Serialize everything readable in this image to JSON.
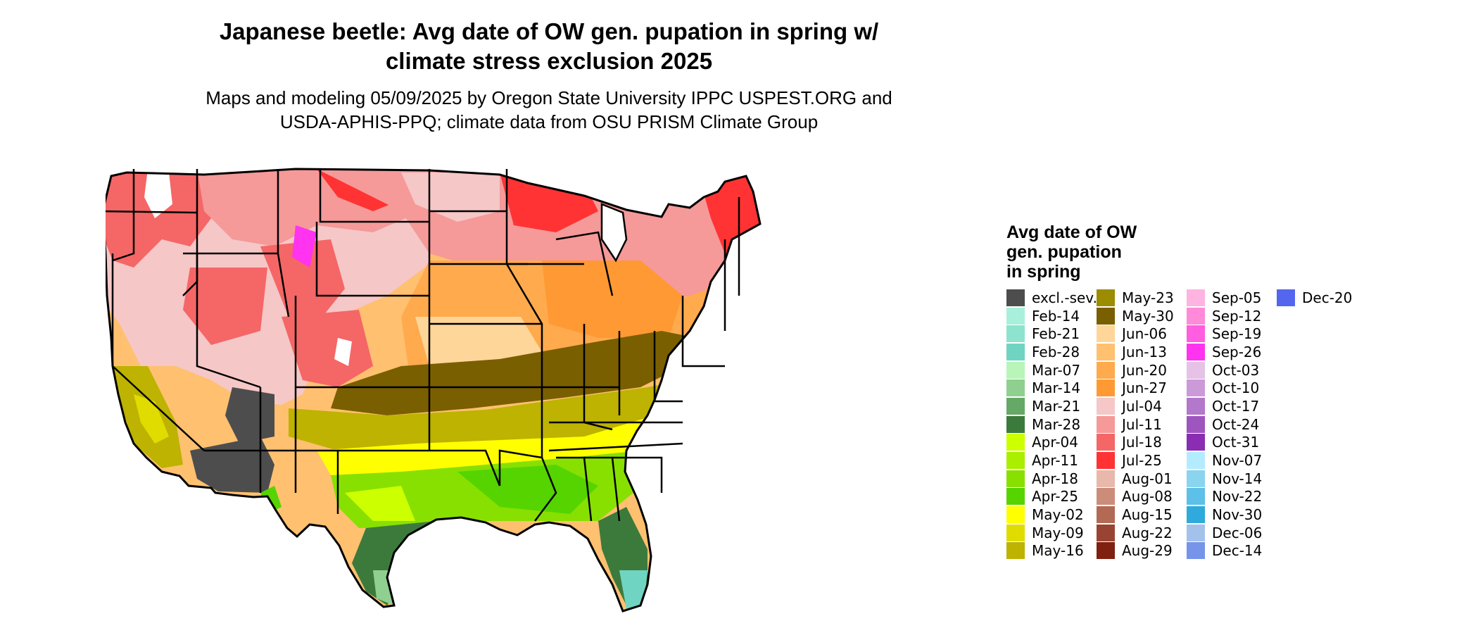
{
  "header": {
    "title_line1": "Japanese beetle: Avg date of OW gen. pupation in spring w/",
    "title_line2": "climate stress exclusion 2025",
    "subtitle_line1": "Maps and modeling 05/09/2025 by Oregon State University IPPC USPEST.ORG and",
    "subtitle_line2": "USDA-APHIS-PPQ; climate data from OSU PRISM Climate Group"
  },
  "legend": {
    "title_line1": "Avg date of OW",
    "title_line2": "gen. pupation",
    "title_line3": "in spring",
    "items": [
      {
        "label": "excl.-sev.",
        "color": "#4d4d4d"
      },
      {
        "label": "Feb-14",
        "color": "#a8f0dc"
      },
      {
        "label": "Feb-21",
        "color": "#8de3cd"
      },
      {
        "label": "Feb-28",
        "color": "#6fd4c2"
      },
      {
        "label": "Mar-07",
        "color": "#b9f5b9"
      },
      {
        "label": "Mar-14",
        "color": "#8fcf8f"
      },
      {
        "label": "Mar-21",
        "color": "#66a866"
      },
      {
        "label": "Mar-28",
        "color": "#3c7a3c"
      },
      {
        "label": "Apr-04",
        "color": "#ccff00"
      },
      {
        "label": "Apr-11",
        "color": "#aaee00"
      },
      {
        "label": "Apr-18",
        "color": "#88e000"
      },
      {
        "label": "Apr-25",
        "color": "#55d400"
      },
      {
        "label": "May-02",
        "color": "#ffff00"
      },
      {
        "label": "May-09",
        "color": "#e0dc00"
      },
      {
        "label": "May-16",
        "color": "#bdb300"
      },
      {
        "label": "May-23",
        "color": "#9c8c00"
      },
      {
        "label": "May-30",
        "color": "#7a5f00"
      },
      {
        "label": "Jun-06",
        "color": "#ffd699"
      },
      {
        "label": "Jun-13",
        "color": "#ffc070"
      },
      {
        "label": "Jun-20",
        "color": "#ffaa4d"
      },
      {
        "label": "Jun-27",
        "color": "#ff9933"
      },
      {
        "label": "Jul-04",
        "color": "#f5c7c7"
      },
      {
        "label": "Jul-11",
        "color": "#f59999"
      },
      {
        "label": "Jul-18",
        "color": "#f56666"
      },
      {
        "label": "Jul-25",
        "color": "#ff3333"
      },
      {
        "label": "Aug-01",
        "color": "#e8b8ab"
      },
      {
        "label": "Aug-08",
        "color": "#cc8c7a"
      },
      {
        "label": "Aug-15",
        "color": "#b36a55"
      },
      {
        "label": "Aug-22",
        "color": "#994433"
      },
      {
        "label": "Aug-29",
        "color": "#802010"
      },
      {
        "label": "Sep-05",
        "color": "#ffb3e0"
      },
      {
        "label": "Sep-12",
        "color": "#ff8ad9"
      },
      {
        "label": "Sep-19",
        "color": "#ff5ee0"
      },
      {
        "label": "Sep-26",
        "color": "#ff33f0"
      },
      {
        "label": "Oct-03",
        "color": "#e6c2e6"
      },
      {
        "label": "Oct-10",
        "color": "#cc99d9"
      },
      {
        "label": "Oct-17",
        "color": "#b377cc"
      },
      {
        "label": "Oct-24",
        "color": "#9e55bf"
      },
      {
        "label": "Oct-31",
        "color": "#8a2db3"
      },
      {
        "label": "Nov-07",
        "color": "#b3ecff"
      },
      {
        "label": "Nov-14",
        "color": "#8ad4f0"
      },
      {
        "label": "Nov-22",
        "color": "#5cc0e8"
      },
      {
        "label": "Nov-30",
        "color": "#2eaadd"
      },
      {
        "label": "Dec-06",
        "color": "#a3c2eb"
      },
      {
        "label": "Dec-14",
        "color": "#7794eb"
      },
      {
        "label": "Dec-20",
        "color": "#5566ee"
      }
    ]
  }
}
